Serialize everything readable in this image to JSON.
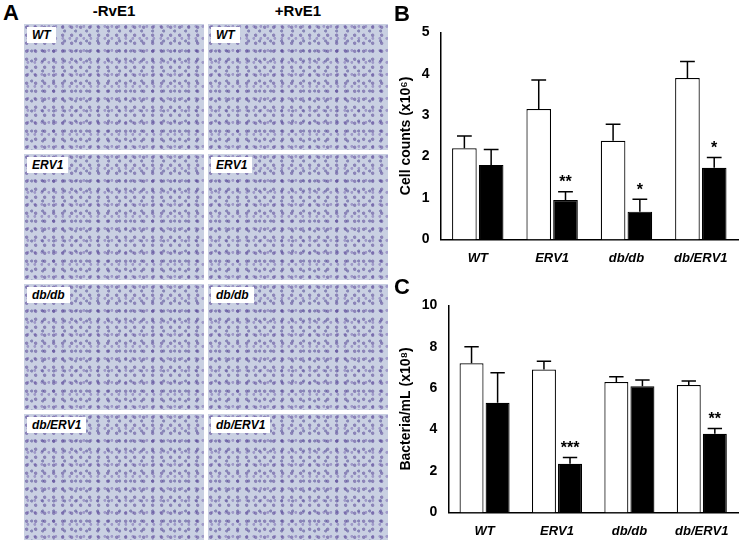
{
  "panel_a": {
    "title": "A",
    "column_titles": [
      "-RvE1",
      "+RvE1"
    ],
    "row_labels": [
      "WT",
      "ERV1",
      "db/db",
      "db/ERV1"
    ]
  },
  "chart_data": [
    {
      "type": "bar",
      "title": "B",
      "y_label": "Cell counts (x10⁶)",
      "categories": [
        "WT",
        "ERV1",
        "db/db",
        "db/ERV1"
      ],
      "series": [
        {
          "color": "#ffffff",
          "values": [
            2.2,
            3.15,
            2.38,
            3.9
          ],
          "errors": [
            0.3,
            0.7,
            0.4,
            0.4
          ],
          "annotations": [
            null,
            null,
            null,
            null
          ]
        },
        {
          "color": "#000000",
          "values": [
            1.8,
            0.95,
            0.67,
            1.73
          ],
          "errors": [
            0.37,
            0.2,
            0.3,
            0.25
          ],
          "annotations": [
            null,
            "**",
            "*",
            "*"
          ]
        }
      ],
      "ylim": [
        0,
        5
      ],
      "yticks": [
        0,
        1,
        2,
        3,
        4,
        5
      ],
      "grid": false
    },
    {
      "type": "bar",
      "title": "C",
      "y_label": "Bacteria/mL (x10⁸)",
      "categories": [
        "WT",
        "ERV1",
        "db/db",
        "db/ERV1"
      ],
      "series": [
        {
          "color": "#ffffff",
          "values": [
            7.2,
            6.9,
            6.3,
            6.15
          ],
          "errors": [
            0.8,
            0.4,
            0.25,
            0.2
          ],
          "annotations": [
            null,
            null,
            null,
            null
          ]
        },
        {
          "color": "#000000",
          "values": [
            5.3,
            2.35,
            6.1,
            3.8
          ],
          "errors": [
            1.45,
            0.3,
            0.3,
            0.25
          ],
          "annotations": [
            null,
            "***",
            null,
            "**"
          ]
        }
      ],
      "ylim": [
        0,
        10
      ],
      "yticks": [
        0,
        2,
        4,
        6,
        8,
        10
      ],
      "grid": false
    }
  ]
}
